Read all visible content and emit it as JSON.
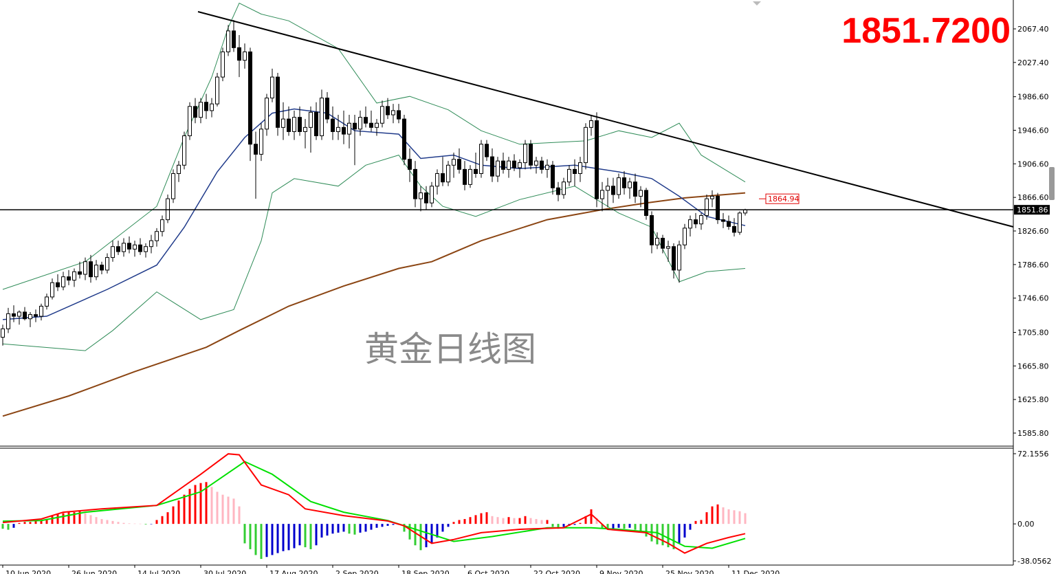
{
  "chart_data": {
    "type": "candlestick",
    "price_display": "1851.7200",
    "watermark": "黄金日线图",
    "ylim": [
      1571.06,
      2101.8
    ],
    "yticks": [
      {
        "value": 2067.4,
        "label": "2067.40"
      },
      {
        "value": 2027.4,
        "label": "2027.40"
      },
      {
        "value": 1986.6,
        "label": "1986.60"
      },
      {
        "value": 1946.6,
        "label": "1946.60"
      },
      {
        "value": 1906.6,
        "label": "1906.60"
      },
      {
        "value": 1866.6,
        "label": "1866.60"
      },
      {
        "value": 1826.6,
        "label": "1826.60"
      },
      {
        "value": 1786.6,
        "label": "1786.60"
      },
      {
        "value": 1746.6,
        "label": "1746.60"
      },
      {
        "value": 1705.8,
        "label": "1705.80"
      },
      {
        "value": 1665.8,
        "label": "1665.80"
      },
      {
        "value": 1625.8,
        "label": "1625.80"
      },
      {
        "value": 1585.8,
        "label": "1585.80"
      }
    ],
    "xticks": [
      {
        "value": 0,
        "label": "10 Jun 2020"
      },
      {
        "value": 12,
        "label": "26 Jun 2020"
      },
      {
        "value": 24,
        "label": "14 Jul 2020"
      },
      {
        "value": 36,
        "label": "30 Jul 2020"
      },
      {
        "value": 48,
        "label": "17 Aug 2020"
      },
      {
        "value": 60,
        "label": "2 Sep 2020"
      },
      {
        "value": 72,
        "label": "18 Sep 2020"
      },
      {
        "value": 84,
        "label": "6 Oct 2020"
      },
      {
        "value": 96,
        "label": "22 Oct 2020"
      },
      {
        "value": 108,
        "label": "9 Nov 2020"
      },
      {
        "value": 120,
        "label": "25 Nov 2020"
      },
      {
        "value": 132,
        "label": "11 Dec 2020"
      }
    ],
    "up_color": "#ffffff",
    "down_color": "#000000",
    "candles": [
      [
        1700,
        1715,
        1690,
        1710
      ],
      [
        1710,
        1735,
        1705,
        1728
      ],
      [
        1728,
        1738,
        1718,
        1725
      ],
      [
        1725,
        1732,
        1715,
        1730
      ],
      [
        1730,
        1736,
        1720,
        1722
      ],
      [
        1722,
        1730,
        1712,
        1727
      ],
      [
        1727,
        1733,
        1718,
        1725
      ],
      [
        1725,
        1740,
        1720,
        1737
      ],
      [
        1737,
        1752,
        1733,
        1748
      ],
      [
        1748,
        1770,
        1745,
        1765
      ],
      [
        1765,
        1775,
        1755,
        1760
      ],
      [
        1760,
        1778,
        1756,
        1772
      ],
      [
        1772,
        1780,
        1762,
        1768
      ],
      [
        1768,
        1782,
        1760,
        1778
      ],
      [
        1778,
        1790,
        1770,
        1775
      ],
      [
        1775,
        1795,
        1768,
        1790
      ],
      [
        1790,
        1798,
        1765,
        1772
      ],
      [
        1772,
        1792,
        1768,
        1786
      ],
      [
        1786,
        1790,
        1775,
        1780
      ],
      [
        1780,
        1800,
        1776,
        1795
      ],
      [
        1795,
        1815,
        1790,
        1808
      ],
      [
        1808,
        1815,
        1798,
        1802
      ],
      [
        1802,
        1818,
        1796,
        1812
      ],
      [
        1812,
        1820,
        1800,
        1805
      ],
      [
        1805,
        1815,
        1796,
        1810
      ],
      [
        1810,
        1818,
        1798,
        1802
      ],
      [
        1802,
        1812,
        1795,
        1808
      ],
      [
        1808,
        1822,
        1800,
        1815
      ],
      [
        1815,
        1830,
        1808,
        1826
      ],
      [
        1826,
        1845,
        1820,
        1840
      ],
      [
        1840,
        1870,
        1836,
        1865
      ],
      [
        1865,
        1900,
        1860,
        1895
      ],
      [
        1895,
        1910,
        1885,
        1905
      ],
      [
        1905,
        1945,
        1900,
        1940
      ],
      [
        1940,
        1980,
        1935,
        1975
      ],
      [
        1975,
        1985,
        1955,
        1962
      ],
      [
        1962,
        1985,
        1955,
        1980
      ],
      [
        1980,
        1990,
        1960,
        1970
      ],
      [
        1970,
        1985,
        1962,
        1978
      ],
      [
        1978,
        2015,
        1975,
        2010
      ],
      [
        2010,
        2045,
        2005,
        2040
      ],
      [
        2040,
        2072,
        2035,
        2065
      ],
      [
        2065,
        2078,
        2040,
        2045
      ],
      [
        2045,
        2060,
        2010,
        2030
      ],
      [
        2030,
        2050,
        2020,
        2040
      ],
      [
        2040,
        2045,
        1910,
        1930
      ],
      [
        1930,
        1945,
        1865,
        1918
      ],
      [
        1918,
        1955,
        1910,
        1948
      ],
      [
        1948,
        1990,
        1940,
        1985
      ],
      [
        1985,
        2020,
        1980,
        2010
      ],
      [
        2010,
        2015,
        1940,
        1950
      ],
      [
        1950,
        1980,
        1935,
        1960
      ],
      [
        1960,
        1975,
        1940,
        1945
      ],
      [
        1945,
        1970,
        1935,
        1962
      ],
      [
        1962,
        1975,
        1940,
        1945
      ],
      [
        1945,
        1960,
        1925,
        1950
      ],
      [
        1950,
        1975,
        1920,
        1968
      ],
      [
        1968,
        1980,
        1935,
        1940
      ],
      [
        1940,
        1995,
        1935,
        1985
      ],
      [
        1985,
        1992,
        1955,
        1960
      ],
      [
        1960,
        1975,
        1935,
        1945
      ],
      [
        1945,
        1965,
        1935,
        1950
      ],
      [
        1950,
        1970,
        1930,
        1942
      ],
      [
        1942,
        1965,
        1925,
        1955
      ],
      [
        1955,
        1965,
        1905,
        1948
      ],
      [
        1948,
        1970,
        1940,
        1962
      ],
      [
        1962,
        1975,
        1950,
        1955
      ],
      [
        1955,
        1970,
        1945,
        1950
      ],
      [
        1950,
        1960,
        1940,
        1955
      ],
      [
        1955,
        1982,
        1950,
        1975
      ],
      [
        1975,
        1985,
        1960,
        1965
      ],
      [
        1965,
        1978,
        1955,
        1970
      ],
      [
        1970,
        1978,
        1955,
        1960
      ],
      [
        1960,
        1965,
        1905,
        1912
      ],
      [
        1912,
        1925,
        1885,
        1900
      ],
      [
        1900,
        1910,
        1855,
        1865
      ],
      [
        1865,
        1880,
        1850,
        1872
      ],
      [
        1872,
        1880,
        1852,
        1860
      ],
      [
        1860,
        1885,
        1855,
        1880
      ],
      [
        1880,
        1900,
        1870,
        1895
      ],
      [
        1895,
        1915,
        1880,
        1885
      ],
      [
        1885,
        1910,
        1880,
        1905
      ],
      [
        1905,
        1920,
        1890,
        1912
      ],
      [
        1912,
        1925,
        1895,
        1900
      ],
      [
        1900,
        1910,
        1875,
        1882
      ],
      [
        1882,
        1905,
        1878,
        1900
      ],
      [
        1900,
        1920,
        1890,
        1895
      ],
      [
        1895,
        1935,
        1890,
        1930
      ],
      [
        1930,
        1935,
        1910,
        1915
      ],
      [
        1915,
        1925,
        1885,
        1892
      ],
      [
        1892,
        1915,
        1885,
        1910
      ],
      [
        1910,
        1920,
        1895,
        1900
      ],
      [
        1900,
        1915,
        1890,
        1910
      ],
      [
        1910,
        1918,
        1898,
        1902
      ],
      [
        1902,
        1912,
        1890,
        1908
      ],
      [
        1908,
        1935,
        1900,
        1930
      ],
      [
        1930,
        1935,
        1900,
        1905
      ],
      [
        1905,
        1915,
        1895,
        1910
      ],
      [
        1910,
        1915,
        1895,
        1900
      ],
      [
        1900,
        1912,
        1890,
        1905
      ],
      [
        1905,
        1910,
        1870,
        1878
      ],
      [
        1878,
        1885,
        1862,
        1870
      ],
      [
        1870,
        1890,
        1865,
        1885
      ],
      [
        1885,
        1905,
        1880,
        1900
      ],
      [
        1900,
        1912,
        1880,
        1895
      ],
      [
        1895,
        1915,
        1885,
        1908
      ],
      [
        1908,
        1955,
        1900,
        1950
      ],
      [
        1950,
        1965,
        1940,
        1958
      ],
      [
        1958,
        1968,
        1855,
        1865
      ],
      [
        1865,
        1885,
        1850,
        1875
      ],
      [
        1875,
        1890,
        1855,
        1880
      ],
      [
        1880,
        1890,
        1860,
        1870
      ],
      [
        1870,
        1895,
        1865,
        1890
      ],
      [
        1890,
        1898,
        1870,
        1878
      ],
      [
        1878,
        1890,
        1865,
        1885
      ],
      [
        1885,
        1895,
        1860,
        1868
      ],
      [
        1868,
        1880,
        1855,
        1875
      ],
      [
        1875,
        1878,
        1840,
        1845
      ],
      [
        1845,
        1850,
        1800,
        1810
      ],
      [
        1810,
        1825,
        1805,
        1818
      ],
      [
        1818,
        1822,
        1800,
        1806
      ],
      [
        1806,
        1815,
        1790,
        1808
      ],
      [
        1808,
        1812,
        1770,
        1780
      ],
      [
        1780,
        1815,
        1765,
        1810
      ],
      [
        1810,
        1835,
        1805,
        1830
      ],
      [
        1830,
        1845,
        1820,
        1840
      ],
      [
        1840,
        1848,
        1830,
        1835
      ],
      [
        1835,
        1848,
        1828,
        1845
      ],
      [
        1845,
        1870,
        1840,
        1865
      ],
      [
        1865,
        1875,
        1855,
        1868
      ],
      [
        1868,
        1872,
        1835,
        1840
      ],
      [
        1840,
        1848,
        1830,
        1838
      ],
      [
        1838,
        1845,
        1828,
        1832
      ],
      [
        1832,
        1842,
        1820,
        1825
      ],
      [
        1825,
        1850,
        1822,
        1848
      ],
      [
        1848,
        1853,
        1845,
        1852
      ]
    ],
    "bb_upper": {
      "color": "#2e8b57",
      "x": [
        0,
        15,
        28,
        33,
        38,
        41,
        43,
        47,
        52,
        61,
        68,
        74,
        81,
        87,
        94,
        106,
        112,
        118,
        123,
        127,
        135
      ],
      "values": [
        1757,
        1790,
        1856,
        1938,
        2010,
        2069,
        2098,
        2085,
        2077,
        2044,
        1979,
        1987,
        1971,
        1946,
        1930,
        1934,
        1946,
        1938,
        1955,
        1917,
        1885
      ]
    },
    "bb_lower": {
      "color": "#2e8b57",
      "x": [
        0,
        15,
        20,
        28,
        36,
        42,
        47,
        49,
        53,
        61,
        66,
        72,
        76,
        80,
        86,
        94,
        104,
        112,
        118,
        123,
        128,
        135
      ],
      "values": [
        1692,
        1684,
        1708,
        1754,
        1721,
        1733,
        1815,
        1872,
        1889,
        1880,
        1905,
        1917,
        1880,
        1856,
        1844,
        1864,
        1880,
        1848,
        1831,
        1766,
        1778,
        1782
      ]
    },
    "bb_middle": {
      "color": "#1f3a8a",
      "x": [
        0,
        8,
        19,
        28,
        33,
        39,
        44,
        49,
        53,
        59,
        64,
        72,
        76,
        82,
        87,
        94,
        104,
        112,
        118,
        123,
        128,
        135
      ],
      "values": [
        1721,
        1725,
        1757,
        1786,
        1831,
        1897,
        1938,
        1967,
        1972,
        1967,
        1946,
        1942,
        1913,
        1917,
        1905,
        1901,
        1905,
        1897,
        1889,
        1868,
        1844,
        1833
      ]
    },
    "ma": {
      "color": "#8b4513",
      "x": [
        0,
        12,
        24,
        37,
        43,
        52,
        62,
        72,
        78,
        87,
        99,
        109,
        117,
        124,
        135
      ],
      "values": [
        1606,
        1630,
        1659,
        1688,
        1708,
        1737,
        1761,
        1782,
        1790,
        1815,
        1840,
        1852,
        1860,
        1866,
        1872
      ]
    },
    "ma_label": 1864.94,
    "trendline": {
      "color": "#000000",
      "x": [
        35.5,
        183.75
      ],
      "values": [
        2087.9,
        1831.5
      ]
    },
    "hline": 1851.86,
    "macd": {
      "ylim": [
        -40.9,
        77.8
      ],
      "yticks": [
        72.1556,
        {
          "value": 0,
          "label": "0.00"
        },
        -38.0562
      ],
      "hist_colors": {
        "pos_up": "#ff0000",
        "pos_down": "#ffb6c1",
        "neg_down": "#32cd32",
        "neg_up": "#0000cd"
      },
      "histogram": [
        -5,
        -6,
        -4,
        1,
        2,
        2,
        3,
        3,
        5,
        8,
        10,
        11,
        12,
        12,
        13,
        11,
        9,
        7,
        5,
        4,
        3,
        2,
        1,
        0.5,
        0.3,
        0.2,
        -0.5,
        -0.3,
        4,
        8,
        12,
        18,
        24,
        30,
        36,
        40,
        42,
        43,
        38,
        33,
        30,
        28,
        26,
        18,
        -20,
        -26,
        -32,
        -36,
        -34,
        -32,
        -30,
        -28,
        -27,
        -25,
        -22,
        -24,
        -26,
        -22,
        -14,
        -12,
        -10,
        -9,
        -8,
        -10,
        -11,
        -9,
        -8,
        -6,
        -4,
        -3,
        -2,
        -1,
        -1,
        -8,
        -16,
        -22,
        -27,
        -24,
        -20,
        -14,
        -8,
        -3,
        2,
        4,
        5,
        7,
        9,
        11,
        12,
        8,
        7,
        6,
        7,
        6,
        6,
        8,
        6,
        5,
        4,
        4,
        -3,
        -5,
        -3,
        -2,
        -1,
        1,
        8,
        15,
        6,
        -4,
        -6,
        -5,
        -4,
        -5,
        -4,
        -6,
        -9,
        -13,
        -18,
        -21,
        -22,
        -24,
        -26,
        -20,
        -14,
        -6,
        3,
        4,
        12,
        18,
        20,
        17,
        15,
        14,
        13,
        11
      ],
      "main": {
        "color": "#ff0000",
        "x": [
          0,
          7,
          11,
          18,
          28,
          36,
          41,
          43,
          47,
          52,
          55,
          62,
          70,
          73,
          78,
          82,
          87,
          94,
          102,
          107,
          110,
          117,
          121,
          124,
          128,
          132,
          135
        ],
        "values": [
          1.4,
          5,
          12,
          15.5,
          19,
          51,
          72,
          71,
          40,
          30,
          15.5,
          8.5,
          3,
          -2,
          -20,
          -16,
          -9,
          -5.6,
          -4,
          10,
          -5.6,
          -9,
          -20,
          -30,
          -20,
          -14,
          -10
        ]
      },
      "signal": {
        "color": "#00e000",
        "x": [
          0,
          7,
          15,
          28,
          36,
          44,
          49,
          56,
          62,
          70,
          77,
          82,
          89,
          99,
          107,
          112,
          119,
          124,
          129,
          135
        ],
        "values": [
          2.8,
          3.5,
          12,
          19,
          33,
          64,
          51,
          23,
          12,
          3.5,
          -9,
          -18,
          -13,
          -4,
          -4,
          -5.6,
          -9,
          -23,
          -25,
          -15
        ]
      }
    }
  }
}
